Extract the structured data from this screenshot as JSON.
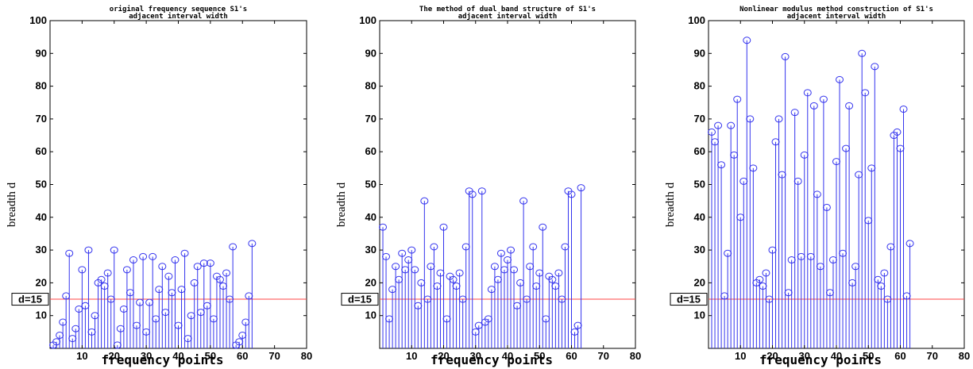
{
  "chart_data": [
    {
      "type": "stem",
      "title_lines": [
        "original frequency sequence S1's",
        "adjacent interval width"
      ],
      "xlabel": "frequency points",
      "ylabel": "breadth d",
      "xlim": [
        0,
        80
      ],
      "ylim": [
        0,
        100
      ],
      "xticks": [
        10,
        20,
        30,
        40,
        50,
        60,
        70,
        80
      ],
      "yticks": [
        10,
        20,
        30,
        40,
        50,
        60,
        70,
        80,
        90,
        100
      ],
      "reference_line": {
        "y": 15,
        "label": "d=15",
        "color": "#ff4444"
      },
      "series_color": "#3333ee",
      "x": [
        1,
        2,
        3,
        4,
        5,
        6,
        7,
        8,
        9,
        10,
        11,
        12,
        13,
        14,
        15,
        16,
        17,
        18,
        19,
        20,
        21,
        22,
        23,
        24,
        25,
        26,
        27,
        28,
        29,
        30,
        31,
        32,
        33,
        34,
        35,
        36,
        37,
        38,
        39,
        40,
        41,
        42,
        43,
        44,
        45,
        46,
        47,
        48,
        49,
        50,
        51,
        52,
        53,
        54,
        55,
        56,
        57,
        58,
        59,
        60,
        61,
        62,
        63
      ],
      "values": [
        1,
        2,
        4,
        8,
        16,
        29,
        3,
        6,
        12,
        24,
        13,
        30,
        5,
        10,
        20,
        21,
        19,
        23,
        15,
        30,
        1,
        6,
        12,
        24,
        17,
        27,
        7,
        14,
        28,
        5,
        14,
        28,
        9,
        18,
        25,
        11,
        22,
        17,
        27,
        7,
        18,
        29,
        3,
        10,
        20,
        25,
        11,
        26,
        13,
        26,
        9,
        22,
        21,
        19,
        23,
        15,
        31,
        1,
        2,
        4,
        8,
        16,
        32
      ]
    },
    {
      "type": "stem",
      "title_lines": [
        "The method of dual band structure of S1's",
        "adjacent interval width"
      ],
      "xlabel": "frequency points",
      "ylabel": "breadth d",
      "xlim": [
        0,
        80
      ],
      "ylim": [
        0,
        100
      ],
      "xticks": [
        10,
        20,
        30,
        40,
        50,
        60,
        70,
        80
      ],
      "yticks": [
        10,
        20,
        30,
        40,
        50,
        60,
        70,
        80,
        90,
        100
      ],
      "reference_line": {
        "y": 15,
        "label": "d=15",
        "color": "#ff4444"
      },
      "series_color": "#3333ee",
      "x": [
        1,
        2,
        3,
        4,
        5,
        6,
        7,
        8,
        9,
        10,
        11,
        12,
        13,
        14,
        15,
        16,
        17,
        18,
        19,
        20,
        21,
        22,
        23,
        24,
        25,
        26,
        27,
        28,
        29,
        30,
        31,
        32,
        33,
        34,
        35,
        36,
        37,
        38,
        39,
        40,
        41,
        42,
        43,
        44,
        45,
        46,
        47,
        48,
        49,
        50,
        51,
        52,
        53,
        54,
        55,
        56,
        57,
        58,
        59,
        60,
        61,
        62,
        63
      ],
      "values": [
        37,
        28,
        9,
        18,
        25,
        21,
        29,
        24,
        27,
        30,
        24,
        13,
        20,
        45,
        15,
        25,
        31,
        19,
        23,
        37,
        9,
        22,
        21,
        19,
        23,
        15,
        31,
        48,
        47,
        5,
        7,
        48,
        8,
        9,
        18,
        25,
        21,
        29,
        24,
        27,
        30,
        24,
        13,
        20,
        45,
        15,
        25,
        31,
        19,
        23,
        37,
        9,
        22,
        21,
        19,
        23,
        15,
        31,
        48,
        47,
        5,
        7,
        49
      ]
    },
    {
      "type": "stem",
      "title_lines": [
        "Nonlinear modulus method construction of S1's",
        "adjacent interval width"
      ],
      "xlabel": "frequency points",
      "ylabel": "breadth d",
      "xlim": [
        0,
        80
      ],
      "ylim": [
        0,
        100
      ],
      "xticks": [
        10,
        20,
        30,
        40,
        50,
        60,
        70,
        80
      ],
      "yticks": [
        10,
        20,
        30,
        40,
        50,
        60,
        70,
        80,
        90,
        100
      ],
      "reference_line": {
        "y": 15,
        "label": "d=15",
        "color": "#ff4444"
      },
      "series_color": "#3333ee",
      "x": [
        1,
        2,
        3,
        4,
        5,
        6,
        7,
        8,
        9,
        10,
        11,
        12,
        13,
        14,
        15,
        16,
        17,
        18,
        19,
        20,
        21,
        22,
        23,
        24,
        25,
        26,
        27,
        28,
        29,
        30,
        31,
        32,
        33,
        34,
        35,
        36,
        37,
        38,
        39,
        40,
        41,
        42,
        43,
        44,
        45,
        46,
        47,
        48,
        49,
        50,
        51,
        52,
        53,
        54,
        55,
        56,
        57,
        58,
        59,
        60,
        61,
        62,
        63
      ],
      "values": [
        66,
        63,
        68,
        56,
        16,
        29,
        68,
        59,
        76,
        40,
        51,
        94,
        70,
        55,
        20,
        21,
        19,
        23,
        15,
        30,
        63,
        70,
        53,
        89,
        17,
        27,
        72,
        51,
        28,
        59,
        78,
        28,
        74,
        47,
        25,
        76,
        43,
        17,
        27,
        57,
        82,
        29,
        61,
        74,
        20,
        25,
        53,
        90,
        78,
        39,
        55,
        86,
        21,
        19,
        23,
        15,
        31,
        65,
        66,
        61,
        73,
        16,
        32
      ]
    }
  ]
}
